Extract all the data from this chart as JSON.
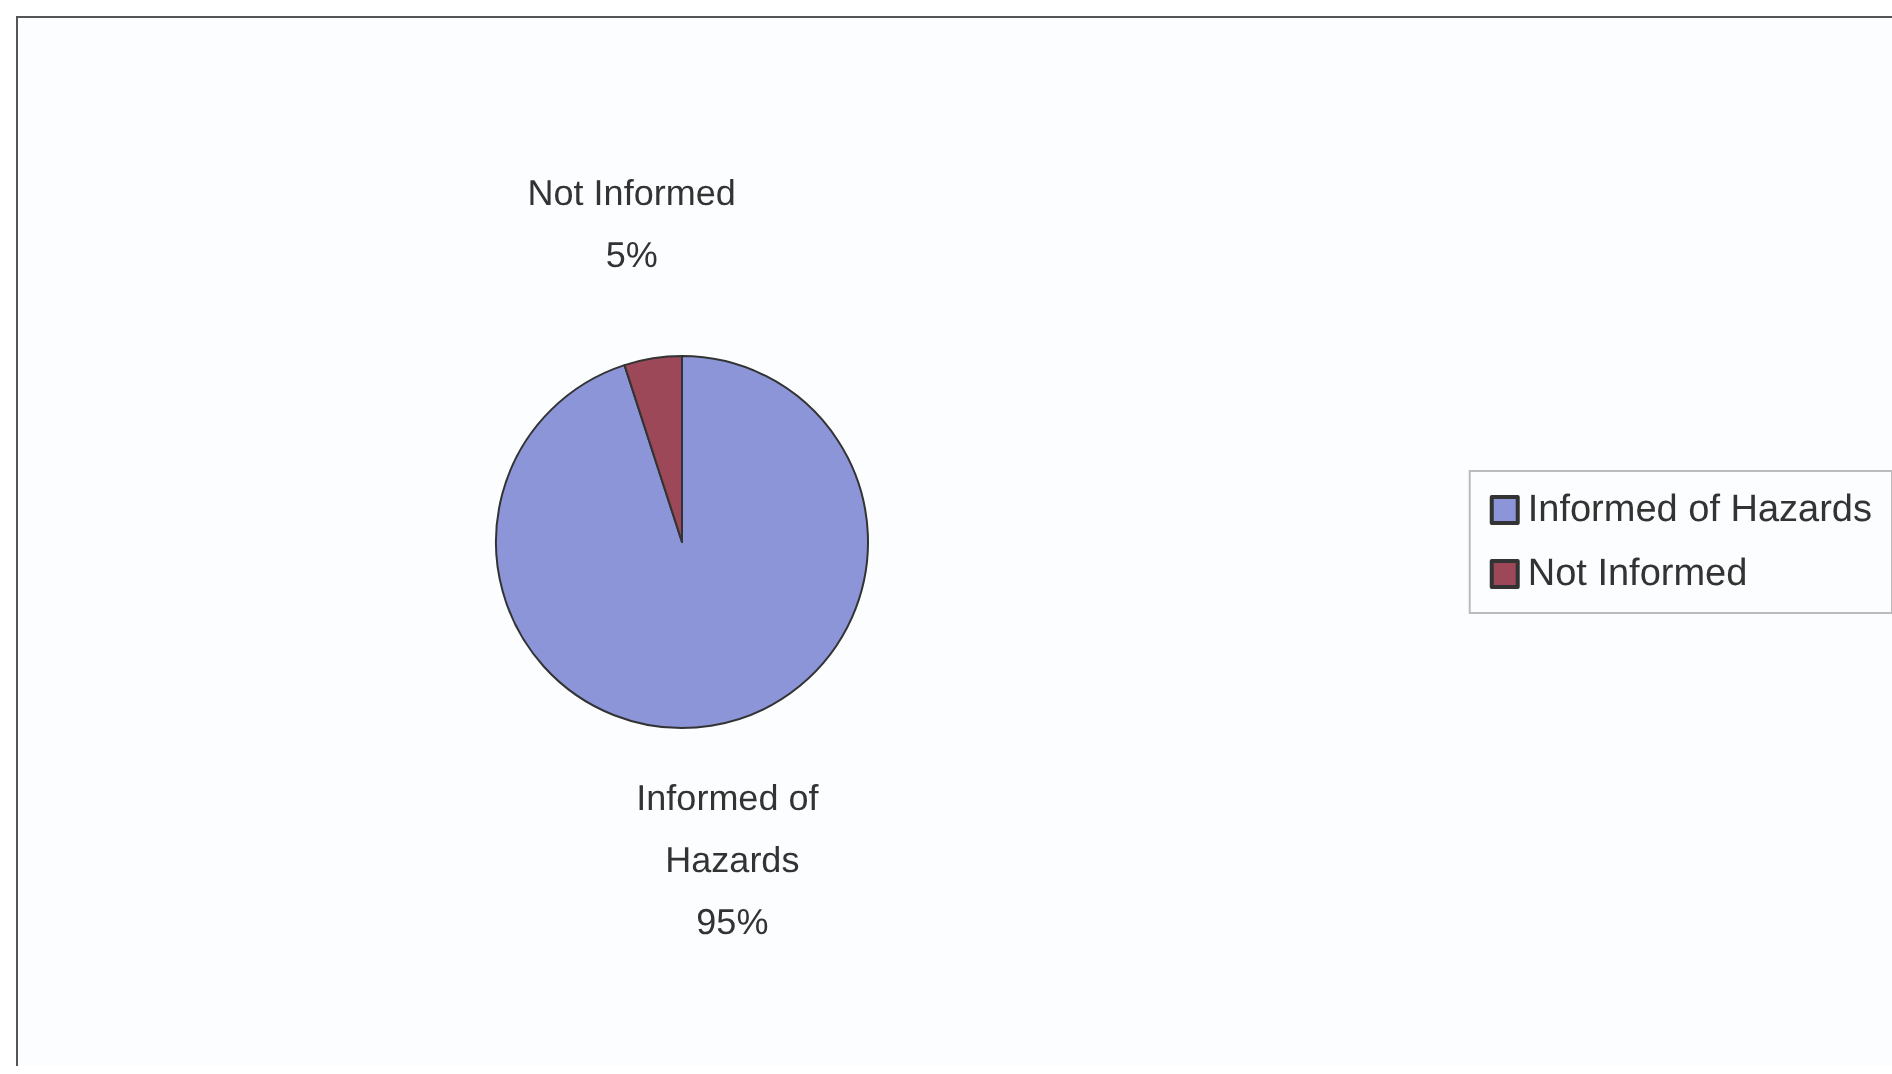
{
  "chart_data": {
    "type": "pie",
    "categories": [
      "Informed of Hazards",
      "Not Informed"
    ],
    "values": [
      95,
      5
    ],
    "colors": [
      "#8b95d8",
      "#9c4858"
    ],
    "value_labels": [
      "95%",
      "5%"
    ],
    "legend": "right"
  }
}
